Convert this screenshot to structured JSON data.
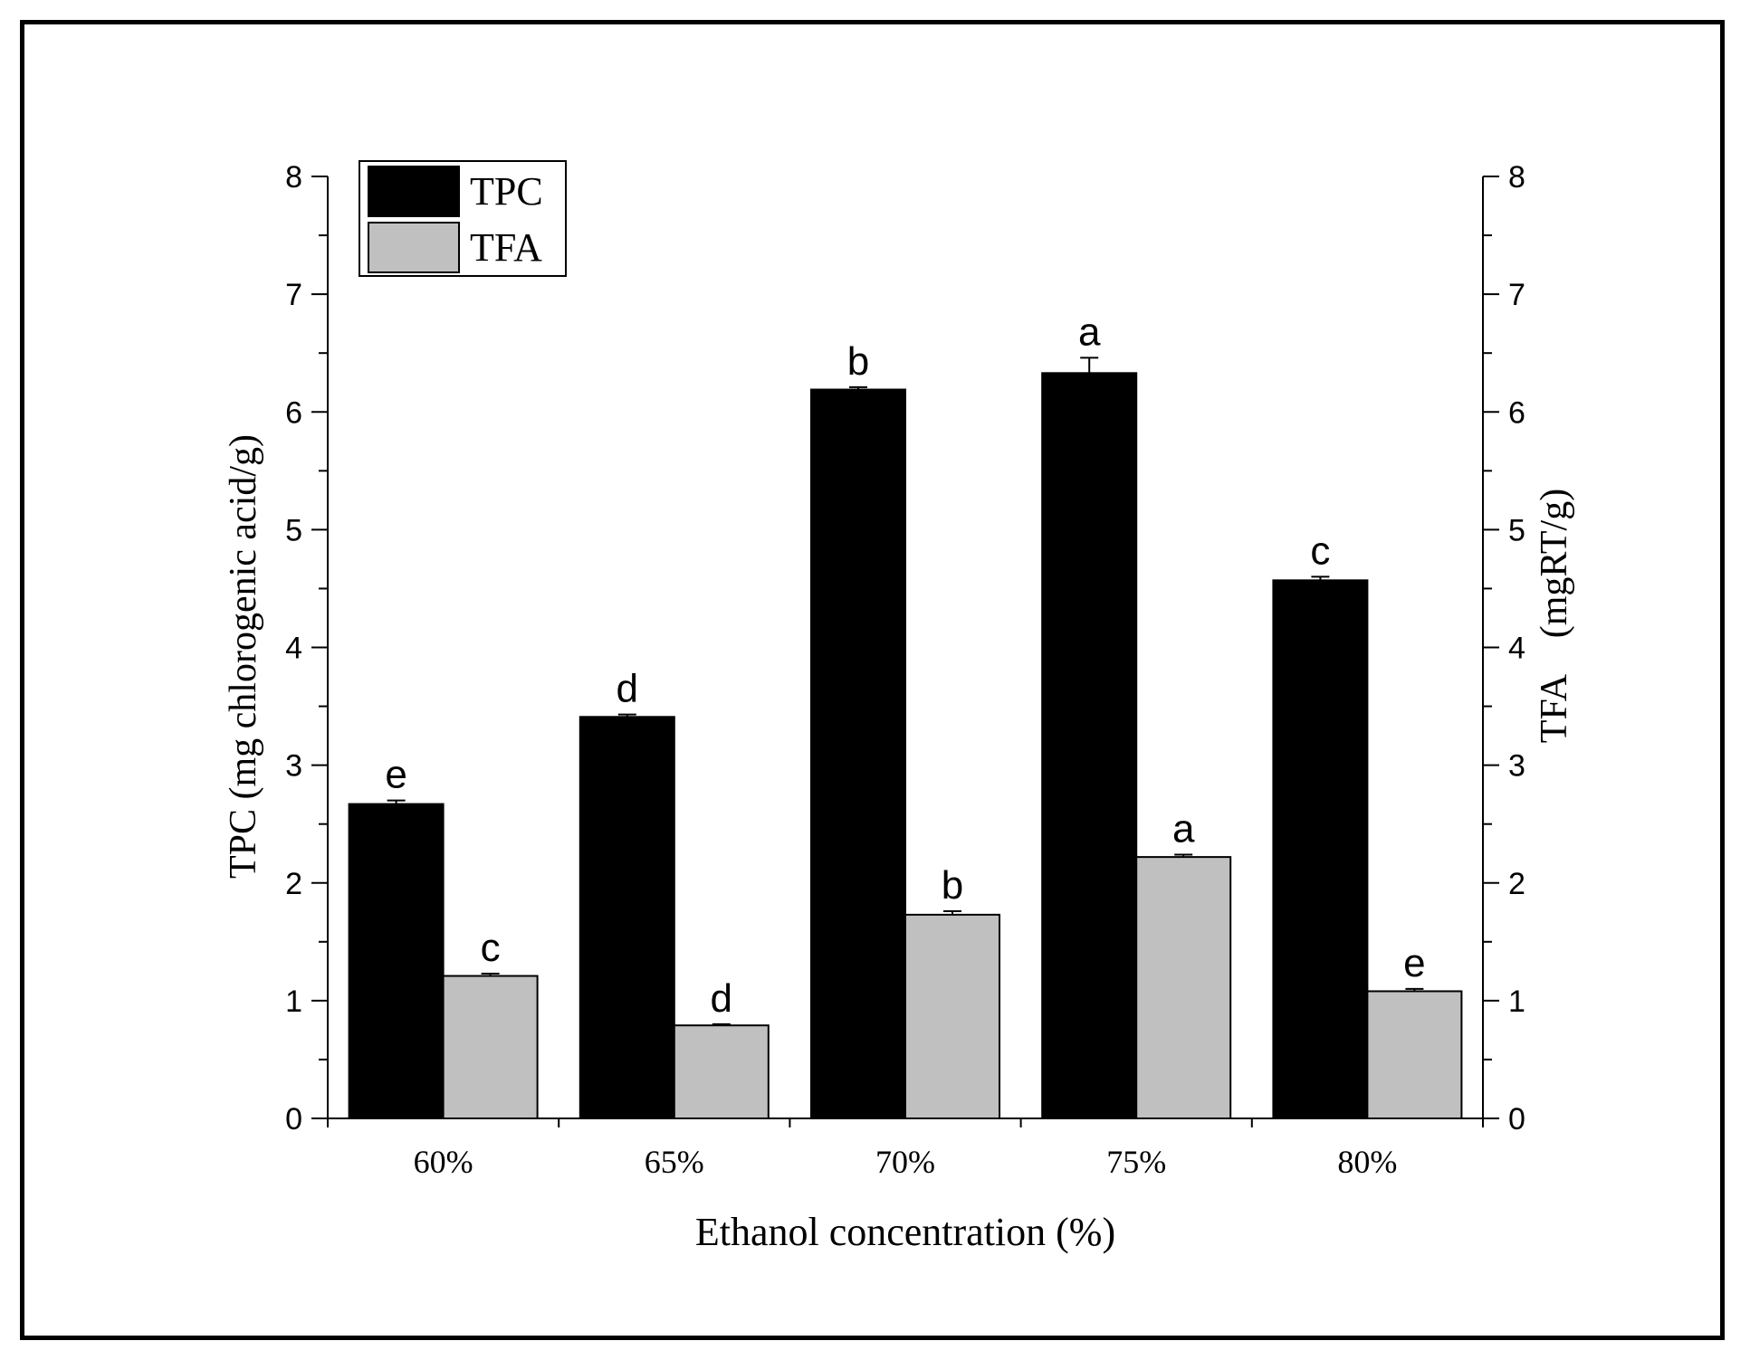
{
  "chart_data": {
    "type": "bar",
    "categories": [
      "60%",
      "65%",
      "70%",
      "75%",
      "80%"
    ],
    "series": [
      {
        "name": "TPC",
        "axis": "left",
        "color": "#000000",
        "values": [
          2.67,
          3.41,
          6.19,
          6.33,
          4.57
        ],
        "errors": [
          0.03,
          0.02,
          0.02,
          0.13,
          0.03
        ],
        "letters": [
          "e",
          "d",
          "b",
          "a",
          "c"
        ]
      },
      {
        "name": "TFA",
        "axis": "right",
        "color": "#c0c0c0",
        "values": [
          1.21,
          0.79,
          1.73,
          2.22,
          1.08
        ],
        "errors": [
          0.02,
          0.01,
          0.03,
          0.02,
          0.02
        ],
        "letters": [
          "c",
          "d",
          "b",
          "a",
          "e"
        ]
      }
    ],
    "xlabel": "Ethanol concentration (%)",
    "ylabel": "TPC (mg chlorogenic acid/g)",
    "ylabel_right": "TFA　(mgRT/g)",
    "ylim": [
      0,
      8
    ],
    "ylim_right": [
      0,
      8
    ],
    "yticks": [
      0,
      1,
      2,
      3,
      4,
      5,
      6,
      7,
      8
    ],
    "legend": "top-left"
  }
}
